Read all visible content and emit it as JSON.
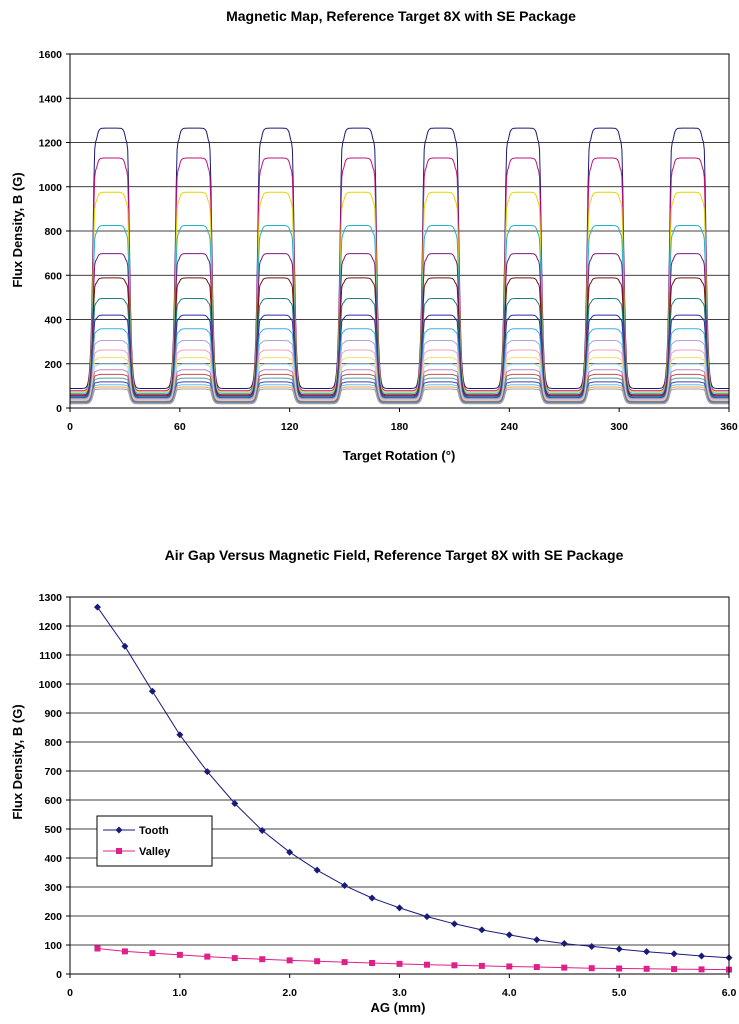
{
  "chart_data": [
    {
      "type": "line",
      "title": "Magnetic Map, Reference Target 8X with SE Package",
      "xlabel": "Target Rotation (°)",
      "ylabel": "Flux Density, B (G)",
      "xlim": [
        0,
        360
      ],
      "ylim": [
        0,
        1600
      ],
      "xticks": [
        "0",
        "60",
        "120",
        "180",
        "240",
        "300",
        "360"
      ],
      "yticks": [
        "0",
        "200",
        "400",
        "600",
        "800",
        "1000",
        "1200",
        "1400",
        "1600"
      ],
      "grid": "horizontal",
      "teeth_count": 8,
      "tooth_center_deg": [
        22.5,
        67.5,
        112.5,
        157.5,
        202.5,
        247.5,
        292.5,
        337.5
      ],
      "tooth_half_width_deg": 10,
      "series_colors": [
        "#1a1a7a",
        "#c0157a",
        "#e8d400",
        "#22b3c8",
        "#7a1a7a",
        "#7a1010",
        "#1a8080",
        "#2a2aa8",
        "#3ab0e0",
        "#b0a0e0",
        "#f0a0c0",
        "#f0e070",
        "#a0e0f0",
        "#c080c0",
        "#c05050",
        "#50a0a0",
        "#4040c0",
        "#60c0f0",
        "#f0a040",
        "#a0a0a0"
      ],
      "series": [
        {
          "tooth": 1265,
          "valley": 88
        },
        {
          "tooth": 1130,
          "valley": 78
        },
        {
          "tooth": 975,
          "valley": 72
        },
        {
          "tooth": 825,
          "valley": 66
        },
        {
          "tooth": 698,
          "valley": 60
        },
        {
          "tooth": 588,
          "valley": 55
        },
        {
          "tooth": 495,
          "valley": 51
        },
        {
          "tooth": 420,
          "valley": 47
        },
        {
          "tooth": 358,
          "valley": 44
        },
        {
          "tooth": 305,
          "valley": 41
        },
        {
          "tooth": 262,
          "valley": 38
        },
        {
          "tooth": 228,
          "valley": 35
        },
        {
          "tooth": 198,
          "valley": 32
        },
        {
          "tooth": 173,
          "valley": 30
        },
        {
          "tooth": 152,
          "valley": 28
        },
        {
          "tooth": 135,
          "valley": 26
        },
        {
          "tooth": 118,
          "valley": 24
        },
        {
          "tooth": 105,
          "valley": 22
        },
        {
          "tooth": 95,
          "valley": 20
        },
        {
          "tooth": 86,
          "valley": 19
        }
      ]
    },
    {
      "type": "line",
      "title": "Air Gap Versus Magnetic Field, Reference Target 8X with SE Package",
      "xlabel": "AG (mm)",
      "ylabel": "Flux Density, B (G)",
      "xlim": [
        0,
        6
      ],
      "ylim": [
        0,
        1300
      ],
      "xticks": [
        "0",
        "1.0",
        "2.0",
        "3.0",
        "4.0",
        "5.0",
        "6.0"
      ],
      "yticks": [
        "0",
        "100",
        "200",
        "300",
        "400",
        "500",
        "600",
        "700",
        "800",
        "900",
        "1000",
        "1100",
        "1200",
        "1300"
      ],
      "grid": "horizontal",
      "legend_position": "left-middle",
      "x": [
        0.25,
        0.5,
        0.75,
        1.0,
        1.25,
        1.5,
        1.75,
        2.0,
        2.25,
        2.5,
        2.75,
        3.0,
        3.25,
        3.5,
        3.75,
        4.0,
        4.25,
        4.5,
        4.75,
        5.0,
        5.25,
        5.5,
        5.75,
        6.0
      ],
      "series": [
        {
          "name": "Tooth",
          "color": "#1a1a7a",
          "marker": "diamond",
          "values": [
            1265,
            1130,
            975,
            825,
            698,
            588,
            495,
            420,
            358,
            305,
            262,
            228,
            198,
            173,
            152,
            135,
            118,
            105,
            95,
            86,
            77,
            70,
            62,
            56
          ]
        },
        {
          "name": "Valley",
          "color": "#e0208a",
          "marker": "square",
          "values": [
            88,
            78,
            72,
            66,
            60,
            55,
            51,
            47,
            44,
            41,
            38,
            35,
            32,
            30,
            28,
            26,
            24,
            22,
            20,
            19,
            18,
            17,
            16,
            15
          ]
        }
      ]
    }
  ]
}
